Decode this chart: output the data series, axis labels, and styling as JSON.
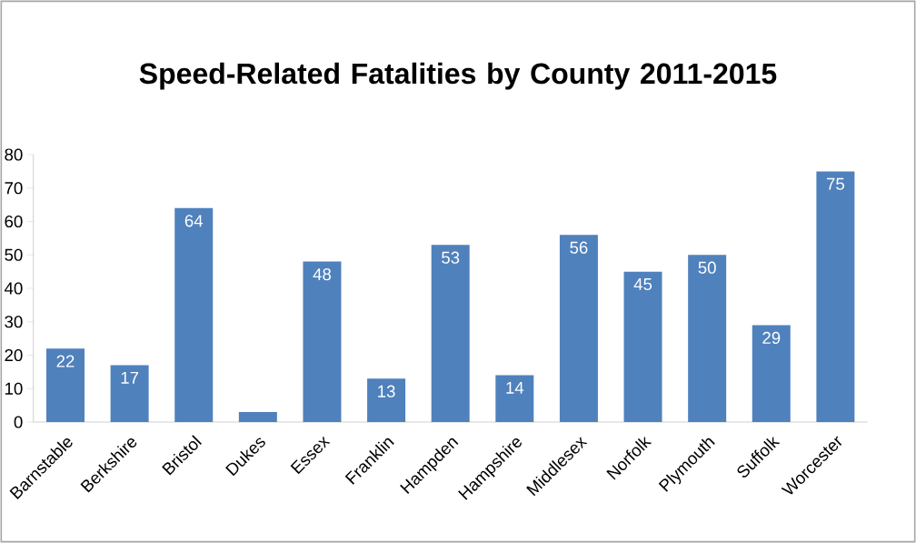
{
  "chart_data": {
    "type": "bar",
    "title": "Speed-Related Fatalities by County 2011-2015",
    "categories": [
      "Barnstable",
      "Berkshire",
      "Bristol",
      "Dukes",
      "Essex",
      "Franklin",
      "Hampden",
      "Hampshire",
      "Middlesex",
      "Norfolk",
      "Plymouth",
      "Suffolk",
      "Worcester"
    ],
    "values": [
      22,
      17,
      64,
      3,
      48,
      13,
      53,
      14,
      56,
      45,
      50,
      29,
      75
    ],
    "value_labels": [
      "22",
      "17",
      "64",
      null,
      "48",
      "13",
      "53",
      "14",
      "56",
      "45",
      "50",
      "29",
      "75"
    ],
    "color": "#4f81bd",
    "ylim": [
      0,
      80
    ],
    "yticks": [
      0,
      10,
      20,
      30,
      40,
      50,
      60,
      70,
      80
    ]
  }
}
